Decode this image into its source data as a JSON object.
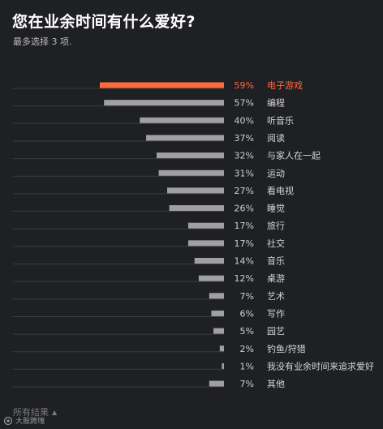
{
  "header": {
    "title": "您在业余时间有什么爱好?",
    "subtitle": "最多选择 3 项."
  },
  "footer": {
    "show_results_label": "所有结果",
    "watermark_text": "大股跨塊"
  },
  "colors": {
    "background": "#1f2024",
    "bar": "#a0a0a0",
    "highlight": "#ff6a3d",
    "baseline": "#3b3c41"
  },
  "chart_data": {
    "type": "bar",
    "orientation": "horizontal",
    "direction": "right-to-left",
    "unit": "%",
    "highlight_index": 0,
    "categories": [
      "电子游戏",
      "编程",
      "听音乐",
      "阅读",
      "与家人在一起",
      "运动",
      "看电视",
      "睡觉",
      "旅行",
      "社交",
      "音乐",
      "桌游",
      "艺术",
      "写作",
      "园艺",
      "钓鱼/狩猎",
      "我没有业余时间来追求爱好",
      "其他"
    ],
    "values": [
      59,
      57,
      40,
      37,
      32,
      31,
      27,
      26,
      17,
      17,
      14,
      12,
      7,
      6,
      5,
      2,
      1,
      7
    ],
    "value_labels": [
      "59%",
      "57%",
      "40%",
      "37%",
      "32%",
      "31%",
      "27%",
      "26%",
      "17%",
      "17%",
      "14%",
      "12%",
      "7%",
      "6%",
      "5%",
      "2%",
      "1%",
      "7%"
    ],
    "xlim": [
      0,
      59
    ]
  }
}
